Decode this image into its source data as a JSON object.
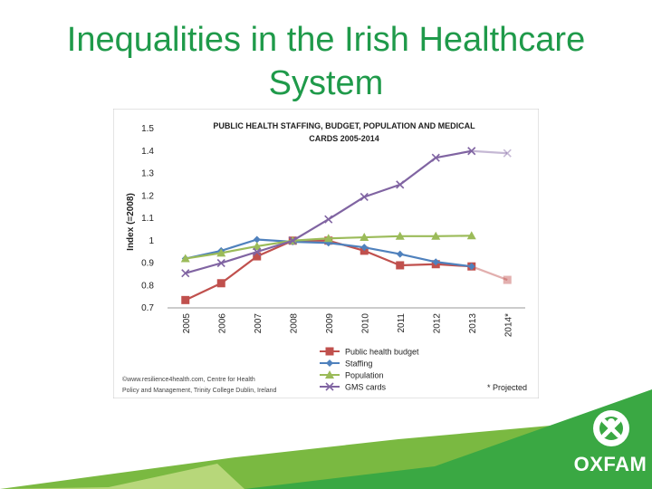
{
  "slide": {
    "title": "Inequalities in the Irish Healthcare System",
    "brand": "OXFAM"
  },
  "colors": {
    "title": "#1f9a4a",
    "brand_green": "#3aa843",
    "brand_lime": "#7ab941",
    "public_health_budget": "#c0504d",
    "staffing": "#4f81bd",
    "population": "#9bbb59",
    "gms_cards": "#8064a2"
  },
  "chart_data": {
    "type": "line",
    "title": "PUBLIC HEALTH STAFFING, BUDGET, POPULATION AND MEDICAL CARDS 2005-2014",
    "ylabel": "Index (=2008)",
    "xlabel": "",
    "categories": [
      "2005",
      "2006",
      "2007",
      "2008",
      "2009",
      "2010",
      "2011",
      "2012",
      "2013",
      "2014*"
    ],
    "yticks": [
      "1.5",
      "1.4",
      "1.3",
      "1.2",
      "1.1",
      "1",
      "0.9",
      "0.8",
      "0.7"
    ],
    "ylim": [
      0.7,
      1.5
    ],
    "grid": false,
    "legend_position": "bottom",
    "series": [
      {
        "name": "Public health budget",
        "values": [
          0.735,
          0.81,
          0.93,
          1.0,
          1.0,
          0.955,
          0.89,
          0.895,
          0.885,
          0.825
        ],
        "projected_index": 9
      },
      {
        "name": "Staffing",
        "values": [
          0.92,
          0.955,
          1.005,
          0.995,
          0.99,
          0.97,
          0.94,
          0.905,
          0.885,
          null
        ],
        "projected_index": null
      },
      {
        "name": "Population",
        "values": [
          0.92,
          0.945,
          0.975,
          1.0,
          1.01,
          1.015,
          1.02,
          1.02,
          1.022,
          null
        ],
        "projected_index": null
      },
      {
        "name": "GMS cards",
        "values": [
          0.855,
          0.9,
          0.95,
          1.0,
          1.095,
          1.195,
          1.25,
          1.37,
          1.4,
          1.39
        ],
        "projected_index": 9
      }
    ],
    "source_note_lines": [
      "©www.resilience4health.com, Centre for Health",
      "Policy and Management, Trinity College Dublin, Ireland"
    ],
    "projection_note": "* Projected"
  }
}
